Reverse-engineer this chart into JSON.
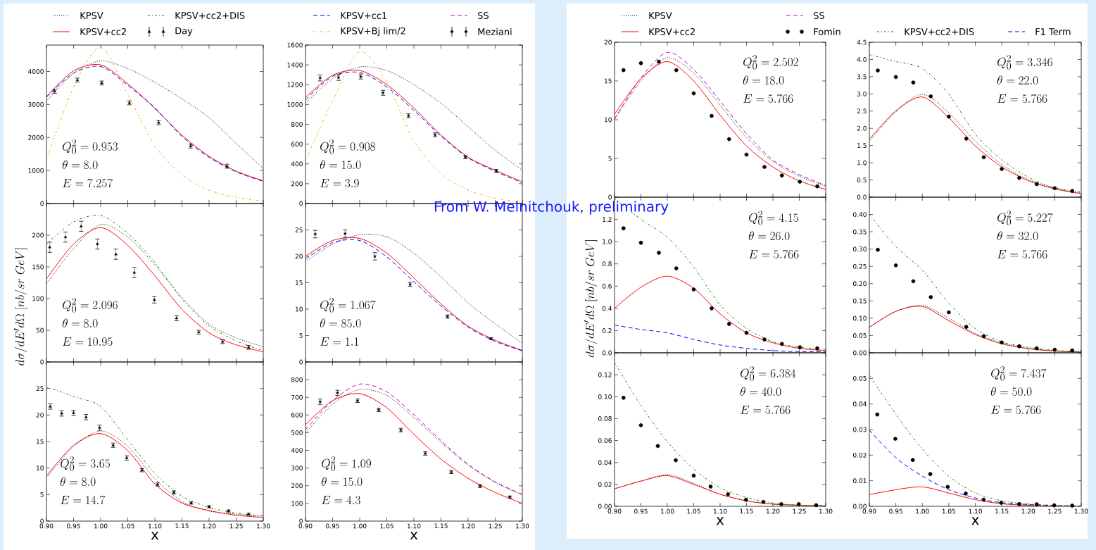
{
  "chart_data": [
    {
      "type": "line",
      "x": [
        0.9,
        0.95,
        1.0,
        1.05,
        1.1,
        1.15,
        1.2,
        1.25,
        1.3
      ],
      "xlim": [
        0.9,
        1.3
      ],
      "xticks": [
        0.9,
        0.95,
        1.0,
        1.05,
        1.1,
        1.15,
        1.2,
        1.25,
        1.3
      ],
      "ylim": [
        0,
        4800
      ],
      "yticks": [
        0,
        1000,
        2000,
        3000,
        4000
      ],
      "tick_labels": "y",
      "legend": "top",
      "annotations": [
        "Q_0^2=0.953",
        "\\theta=8.0",
        "E=7.257"
      ],
      "series": [
        {
          "name": "KPSV",
          "color": "#000000",
          "line_style": "dotted",
          "values": [
            3100,
            3950,
            4320,
            4090,
            3670,
            3170,
            2600,
            1820,
            1060
          ]
        },
        {
          "name": "KPSV+cc2",
          "color": "#ff0000",
          "line_style": "solid",
          "values": [
            3240,
            4020,
            4200,
            3630,
            2880,
            2070,
            1430,
            980,
            690
          ]
        },
        {
          "color": "#0000ff",
          "line_style": "dashed",
          "values": [
            3220,
            3950,
            4150,
            3580,
            2900,
            2030,
            1400,
            960,
            670
          ]
        },
        {
          "color": "#ffa500",
          "line_style": "dashdot",
          "values": [
            1330,
            3520,
            4730,
            3310,
            1750,
            870,
            400,
            190,
            60
          ]
        },
        {
          "type": "scatter",
          "marker": "triangle",
          "color": "#000000",
          "x": [
            0.915,
            0.957,
            1.002,
            1.053,
            1.107,
            1.166,
            1.233
          ],
          "values": [
            3400,
            3740,
            3650,
            3050,
            2450,
            1740,
            1130
          ],
          "errors": [
            60,
            60,
            60,
            60,
            60,
            60,
            60
          ]
        }
      ]
    },
    {
      "type": "line",
      "x": [
        0.9,
        0.95,
        1.0,
        1.05,
        1.1,
        1.15,
        1.2,
        1.25,
        1.3
      ],
      "xlim": [
        0.9,
        1.3
      ],
      "xticks": [
        0.9,
        0.95,
        1.0,
        1.05,
        1.1,
        1.15,
        1.2,
        1.25,
        1.3
      ],
      "ylim": [
        0,
        250
      ],
      "yticks": [
        0,
        50,
        100,
        150,
        200
      ],
      "tick_labels": "y",
      "legend": "top",
      "ylabel": "d\\sigma/dE'd\\Omega\\;[nb/sr\\;GeV]",
      "annotations": [
        "Q_0^2=2.096",
        "\\theta=8.0",
        "E=10.95"
      ],
      "series": [
        {
          "color": "#000000",
          "line_style": "dotted",
          "values": [
            123,
            179,
            217,
            197,
            153,
            101,
            60,
            38,
            24
          ]
        },
        {
          "color": "#ff0000",
          "line_style": "solid",
          "values": [
            131,
            186,
            212,
            184,
            136,
            83,
            46,
            27,
            16
          ]
        },
        {
          "name": "KPSV+cc2+DIS",
          "color": "#008000",
          "line_style": "dashdot",
          "values": [
            186,
            221,
            231,
            203,
            157,
            99,
            57,
            33,
            18
          ]
        },
        {
          "type": "scatter",
          "marker": "triangle",
          "color": "#000000",
          "x": [
            0.906,
            0.935,
            0.964,
            0.994,
            1.028,
            1.062,
            1.099,
            1.14,
            1.181,
            1.225,
            1.273
          ],
          "values": [
            181,
            197,
            214,
            186,
            170,
            141,
            98,
            69,
            47,
            32,
            23
          ],
          "errors": [
            8,
            8,
            8,
            8,
            8,
            8,
            5,
            4,
            3,
            3,
            3
          ]
        }
      ]
    },
    {
      "type": "line",
      "x": [
        0.9,
        0.95,
        1.0,
        1.05,
        1.1,
        1.15,
        1.2,
        1.25,
        1.3
      ],
      "xlim": [
        0.9,
        1.3
      ],
      "xticks": [
        {
          "value": 0.9,
          "label": "0.90"
        },
        {
          "value": 0.95,
          "label": "0.95"
        },
        {
          "value": 1.0,
          "label": "1.00"
        },
        {
          "value": 1.05,
          "label": "1.05"
        },
        {
          "value": 1.1,
          "label": "1.10"
        },
        {
          "value": 1.15,
          "label": "1.15"
        },
        {
          "value": 1.2,
          "label": "1.20"
        },
        {
          "value": 1.25,
          "label": "1.25"
        },
        {
          "value": 1.3,
          "label": "1.30"
        }
      ],
      "ylim": [
        0,
        30
      ],
      "yticks": [
        0,
        5,
        10,
        15,
        20,
        25
      ],
      "legend": "top",
      "xlabel": "x",
      "annotations": [
        "Q_0^2=3.65",
        "\\theta=8.0",
        "E=14.7"
      ],
      "series": [
        {
          "color": "#000000",
          "line_style": "dotted",
          "values": [
            8.2,
            14.0,
            17.0,
            14.1,
            8.0,
            3.7,
            1.9,
            1.3,
            0.9
          ]
        },
        {
          "color": "#ff0000",
          "line_style": "solid",
          "values": [
            8.5,
            14.3,
            16.5,
            13.3,
            7.0,
            3.4,
            2.0,
            1.1,
            0.7
          ]
        },
        {
          "color": "#008000",
          "line_style": "dashdot",
          "values": [
            25.3,
            23.5,
            21.6,
            15.3,
            9.0,
            4.7,
            2.6,
            1.5,
            1.0
          ]
        },
        {
          "name": "Day",
          "type": "scatter",
          "marker": "triangle",
          "color": "#000000",
          "x": [
            0.907,
            0.928,
            0.95,
            0.973,
            0.998,
            1.023,
            1.048,
            1.076,
            1.105,
            1.135,
            1.167,
            1.2,
            1.236,
            1.273
          ],
          "values": [
            21.6,
            20.3,
            20.4,
            19.6,
            17.6,
            14.3,
            11.9,
            9.6,
            6.9,
            5.4,
            3.4,
            2.7,
            1.9,
            1.3
          ],
          "errors": [
            0.5,
            0.5,
            0.5,
            0.5,
            0.5,
            0.4,
            0.4,
            0.3,
            0.3,
            0.3,
            0.2,
            0.2,
            0.2,
            0.2
          ]
        }
      ]
    },
    {
      "type": "line",
      "x": [
        0.9,
        0.95,
        1.0,
        1.05,
        1.1,
        1.15,
        1.2,
        1.25,
        1.3
      ],
      "xlim": [
        0.9,
        1.3
      ],
      "xticks": [
        0.9,
        0.95,
        1.0,
        1.05,
        1.1,
        1.15,
        1.2,
        1.25,
        1.3
      ],
      "ylim": [
        0,
        1600
      ],
      "yticks": [
        0,
        200,
        400,
        600,
        800,
        1000,
        1200,
        1400,
        1600
      ],
      "tick_labels": "y",
      "legend": "top",
      "annotations": [
        "Q_0^2=0.908",
        "\\theta=15.0",
        "E=3.9"
      ],
      "series": [
        {
          "color": "#000000",
          "line_style": "dotted",
          "values": [
            1012,
            1260,
            1379,
            1343,
            1201,
            1012,
            775,
            538,
            336
          ]
        },
        {
          "color": "#ff0000",
          "line_style": "solid",
          "values": [
            1071,
            1296,
            1343,
            1201,
            964,
            692,
            467,
            336,
            218
          ]
        },
        {
          "name": "KPSV+cc1",
          "color": "#0000ff",
          "line_style": "dashed",
          "values": [
            1047,
            1284,
            1324,
            1178,
            940,
            680,
            462,
            325,
            211
          ]
        },
        {
          "name": "KPSV+Bj lim/2",
          "color": "#ffa500",
          "line_style": "dashdot",
          "values": [
            431,
            1035,
            1533,
            1225,
            633,
            301,
            135,
            52,
            17
          ]
        },
        {
          "type": "scatter",
          "marker": "star",
          "color": "#000000",
          "x": [
            0.927,
            0.961,
            1.002,
            1.043,
            1.09,
            1.139,
            1.195,
            1.252
          ],
          "values": [
            1268,
            1273,
            1282,
            1118,
            886,
            694,
            467,
            329
          ],
          "errors": [
            30,
            30,
            25,
            25,
            20,
            20,
            15,
            15
          ]
        }
      ]
    },
    {
      "type": "line",
      "x": [
        0.9,
        0.95,
        1.0,
        1.05,
        1.1,
        1.15,
        1.2,
        1.25,
        1.3
      ],
      "xlim": [
        0.9,
        1.3
      ],
      "xticks": [
        0.9,
        0.95,
        1.0,
        1.05,
        1.1,
        1.15,
        1.2,
        1.25,
        1.3
      ],
      "ylim": [
        0,
        30
      ],
      "yticks": [
        0,
        5,
        10,
        15,
        20,
        25
      ],
      "tick_labels": "y",
      "annotations": [
        "Q_0^2=1.067",
        "\\theta=85.0",
        "E=1.1",
        "From W. Melnitchouk, preliminary"
      ],
      "series": [
        {
          "color": "#000000",
          "line_style": "dotted",
          "values": [
            19.0,
            22.3,
            24.1,
            23.7,
            20.6,
            16.1,
            11.2,
            7.2,
            3.6
          ]
        },
        {
          "color": "#ff0000",
          "line_style": "solid",
          "values": [
            20.0,
            23.0,
            23.4,
            20.6,
            15.9,
            11.0,
            6.8,
            4.1,
            2.2
          ]
        },
        {
          "color": "#0000ff",
          "line_style": "dashed",
          "values": [
            19.5,
            22.6,
            23.0,
            19.9,
            15.2,
            10.6,
            6.6,
            3.9,
            2.1
          ]
        },
        {
          "type": "scatter",
          "marker": "star",
          "color": "#000000",
          "x": [
            0.918,
            0.973,
            1.028,
            1.093,
            1.162,
            1.242
          ],
          "values": [
            24.2,
            24.3,
            20.0,
            14.7,
            8.6,
            4.4
          ],
          "errors": [
            0.7,
            0.7,
            0.7,
            0.4,
            0.3,
            0.2
          ]
        }
      ]
    },
    {
      "type": "line",
      "x": [
        0.9,
        0.95,
        1.0,
        1.05,
        1.1,
        1.15,
        1.2,
        1.25,
        1.3
      ],
      "xlim": [
        0.9,
        1.3
      ],
      "xticks": [
        {
          "value": 0.9,
          "label": "0.90"
        },
        {
          "value": 0.95,
          "label": "0.95"
        },
        {
          "value": 1.0,
          "label": "1.00"
        },
        {
          "value": 1.05,
          "label": "1.05"
        },
        {
          "value": 1.1,
          "label": "1.10"
        },
        {
          "value": 1.15,
          "label": "1.15"
        },
        {
          "value": 1.2,
          "label": "1.20"
        },
        {
          "value": 1.25,
          "label": "1.25"
        },
        {
          "value": 1.3,
          "label": "1.30"
        }
      ],
      "ylim": [
        0,
        900
      ],
      "yticks": [
        0,
        100,
        200,
        300,
        400,
        500,
        600,
        700,
        800
      ],
      "legend": "top",
      "xlabel": "x",
      "annotations": [
        "Q_0^2=1.09",
        "\\theta=15.0",
        "E=4.3"
      ],
      "series": [
        {
          "color": "#ff0000",
          "line_style": "solid",
          "values": [
            545,
            681,
            721,
            641,
            491,
            351,
            242,
            162,
            100
          ]
        },
        {
          "name": "SS",
          "color": "#bf00bf",
          "line_style": "dashed",
          "values": [
            517,
            681,
            775,
            731,
            601,
            455,
            321,
            222,
            152
          ]
        },
        {
          "color": "#000000",
          "line_style": "dotted",
          "values": [
            497,
            661,
            745,
            711,
            585,
            445,
            317,
            218,
            148
          ]
        },
        {
          "name": "Meziani",
          "type": "scatter",
          "marker": "star",
          "color": "#000000",
          "x": [
            0.927,
            0.959,
            0.996,
            1.035,
            1.076,
            1.121,
            1.169,
            1.222,
            1.277
          ],
          "values": [
            675,
            725,
            681,
            629,
            515,
            383,
            277,
            198,
            136
          ],
          "errors": [
            15,
            15,
            10,
            10,
            10,
            10,
            8,
            8,
            6
          ]
        }
      ]
    },
    {
      "type": "line",
      "x": [
        0.9,
        0.95,
        1.0,
        1.05,
        1.1,
        1.15,
        1.2,
        1.25,
        1.3
      ],
      "xlim": [
        0.9,
        1.3
      ],
      "xticks": [
        0.9,
        0.95,
        1.0,
        1.05,
        1.1,
        1.15,
        1.2,
        1.25,
        1.3
      ],
      "ylim": [
        0,
        20
      ],
      "yticks": [
        0,
        5,
        10,
        15,
        20
      ],
      "tick_labels": "y",
      "legend": "top",
      "annotations": [
        "Q_0^2=2.502",
        "\\theta=18.0",
        "E=5.766"
      ],
      "series": [
        {
          "name": "KPSV",
          "color": "#000000",
          "line_style": "dotted",
          "values": [
            10.0,
            15.0,
            18.0,
            16.0,
            11.9,
            7.7,
            4.6,
            2.7,
            1.4
          ]
        },
        {
          "name": "KPSV+cc2",
          "color": "#ff0000",
          "line_style": "solid",
          "values": [
            10.7,
            15.3,
            17.5,
            15.0,
            10.6,
            6.6,
            3.9,
            2.1,
            1.0
          ]
        },
        {
          "name": "SS",
          "color": "#bf00bf",
          "line_style": "dashed",
          "values": [
            10.1,
            15.4,
            18.7,
            16.5,
            12.4,
            8.2,
            4.8,
            2.9,
            1.5
          ]
        },
        {
          "name": "Fomin",
          "type": "scatter",
          "marker": "circle",
          "color": "#000000",
          "x": [
            0.917,
            0.95,
            0.984,
            1.017,
            1.05,
            1.084,
            1.117,
            1.15,
            1.184,
            1.217,
            1.251,
            1.284
          ],
          "values": [
            16.4,
            17.3,
            17.5,
            16.4,
            13.4,
            10.5,
            7.5,
            5.5,
            3.9,
            2.8,
            2.0,
            1.4
          ]
        }
      ]
    },
    {
      "type": "line",
      "x": [
        0.9,
        0.95,
        1.0,
        1.05,
        1.1,
        1.15,
        1.2,
        1.25,
        1.3
      ],
      "xlim": [
        0.9,
        1.3
      ],
      "xticks": [
        0.9,
        0.95,
        1.0,
        1.05,
        1.1,
        1.15,
        1.2,
        1.25,
        1.3
      ],
      "ylim": [
        0,
        1.4
      ],
      "yticks": [
        {
          "value": 0,
          "label": "0.0"
        },
        {
          "value": 0.2,
          "label": "0.2"
        },
        {
          "value": 0.4,
          "label": "0.4"
        },
        {
          "value": 0.6,
          "label": "0.6"
        },
        {
          "value": 0.8,
          "label": "0.8"
        },
        {
          "value": 1.0,
          "label": "1.0"
        },
        {
          "value": 1.2,
          "label": "1.2"
        }
      ],
      "tick_labels": "y",
      "legend": "top",
      "ylabel": "d\\sigma/dE'd\\Omega\\;[nb/sr\\;GeV]",
      "annotations": [
        "Q_0^2=4.15",
        "\\theta=26.0",
        "E=5.766"
      ],
      "series": [
        {
          "color": "#ff0000",
          "line_style": "solid",
          "values": [
            0.4,
            0.59,
            0.69,
            0.58,
            0.35,
            0.18,
            0.09,
            0.04,
            0.02
          ]
        },
        {
          "name": "KPSV+cc2+DIS",
          "color": "#008000",
          "line_style": "dashdot",
          "values": [
            1.39,
            1.2,
            1.04,
            0.77,
            0.43,
            0.22,
            0.1,
            0.05,
            0.03
          ]
        },
        {
          "name": "F1 Term",
          "color": "#0000ff",
          "line_style": "dashed",
          "values": [
            0.25,
            0.21,
            0.18,
            0.12,
            0.07,
            0.04,
            0.02,
            0.01,
            0.01
          ]
        },
        {
          "type": "scatter",
          "marker": "circle",
          "color": "#000000",
          "x": [
            0.917,
            0.95,
            0.984,
            1.017,
            1.05,
            1.084,
            1.117,
            1.15,
            1.184,
            1.217,
            1.251,
            1.284
          ],
          "values": [
            1.12,
            0.99,
            0.9,
            0.76,
            0.57,
            0.4,
            0.26,
            0.18,
            0.12,
            0.08,
            0.05,
            0.04
          ]
        }
      ]
    },
    {
      "type": "line",
      "x": [
        0.9,
        0.95,
        1.0,
        1.05,
        1.1,
        1.15,
        1.2,
        1.25,
        1.3
      ],
      "xlim": [
        0.9,
        1.3
      ],
      "xticks": [
        {
          "value": 0.9,
          "label": "0.90"
        },
        {
          "value": 0.95,
          "label": "0.95"
        },
        {
          "value": 1.0,
          "label": "1.00"
        },
        {
          "value": 1.05,
          "label": "1.05"
        },
        {
          "value": 1.1,
          "label": "1.10"
        },
        {
          "value": 1.15,
          "label": "1.15"
        },
        {
          "value": 1.2,
          "label": "1.20"
        },
        {
          "value": 1.25,
          "label": "1.25"
        },
        {
          "value": 1.3,
          "label": "1.30"
        }
      ],
      "ylim": [
        0,
        0.14
      ],
      "yticks": [
        {
          "value": 0,
          "label": "0.00"
        },
        {
          "value": 0.02,
          "label": "0.02"
        },
        {
          "value": 0.04,
          "label": "0.04"
        },
        {
          "value": 0.06,
          "label": "0.06"
        },
        {
          "value": 0.08,
          "label": "0.08"
        },
        {
          "value": 0.1,
          "label": "0.10"
        },
        {
          "value": 0.12,
          "label": "0.12"
        }
      ],
      "xlabel": "x",
      "annotations": [
        "Q_0^2=6.384",
        "\\theta=40.0",
        "E=5.766"
      ],
      "series": [
        {
          "color": "#000000",
          "line_style": "dotted",
          "values": [
            0.016,
            0.023,
            0.029,
            0.021,
            0.011,
            0.005,
            0.002,
            0.001,
            0.0
          ]
        },
        {
          "color": "#ff0000",
          "line_style": "solid",
          "values": [
            0.016,
            0.023,
            0.028,
            0.02,
            0.011,
            0.005,
            0.002,
            0.001,
            0.0
          ]
        },
        {
          "color": "#008000",
          "line_style": "dashdot",
          "values": [
            0.131,
            0.092,
            0.059,
            0.034,
            0.017,
            0.008,
            0.003,
            0.001,
            0.001
          ]
        },
        {
          "type": "scatter",
          "marker": "circle",
          "color": "#000000",
          "x": [
            0.917,
            0.95,
            0.982,
            1.016,
            1.05,
            1.082,
            1.115,
            1.149,
            1.182,
            1.216,
            1.249,
            1.282
          ],
          "values": [
            0.099,
            0.074,
            0.055,
            0.042,
            0.028,
            0.018,
            0.011,
            0.006,
            0.004,
            0.002,
            0.002,
            0.001
          ]
        }
      ]
    },
    {
      "type": "line",
      "x": [
        0.9,
        0.95,
        1.0,
        1.05,
        1.1,
        1.15,
        1.2,
        1.25,
        1.3
      ],
      "xlim": [
        0.9,
        1.3
      ],
      "xticks": [
        0.9,
        0.95,
        1.0,
        1.05,
        1.1,
        1.15,
        1.2,
        1.25,
        1.3
      ],
      "ylim": [
        0,
        4.5
      ],
      "yticks": [
        {
          "value": 0,
          "label": "0.0"
        },
        {
          "value": 0.5,
          "label": "0.5"
        },
        {
          "value": 1.0,
          "label": "1.0"
        },
        {
          "value": 1.5,
          "label": "1.5"
        },
        {
          "value": 2.0,
          "label": "2.0"
        },
        {
          "value": 2.5,
          "label": "2.5"
        },
        {
          "value": 3.0,
          "label": "3.0"
        },
        {
          "value": 3.5,
          "label": "3.5"
        },
        {
          "value": 4.0,
          "label": "4.0"
        },
        {
          "value": 4.5,
          "label": "4.5"
        }
      ],
      "tick_labels": "y",
      "annotations": [
        "Q_0^2=3.346",
        "\\theta=22.0",
        "E=5.766"
      ],
      "series": [
        {
          "color": "#ff0000",
          "line_style": "solid",
          "values": [
            1.68,
            2.51,
            2.91,
            2.31,
            1.49,
            0.88,
            0.48,
            0.24,
            0.1
          ]
        },
        {
          "color": "#000000",
          "line_style": "dotted",
          "values": [
            1.63,
            2.48,
            2.99,
            2.45,
            1.63,
            0.95,
            0.51,
            0.26,
            0.12
          ]
        },
        {
          "color": "#008000",
          "line_style": "dashdot",
          "values": [
            4.14,
            3.94,
            3.74,
            2.99,
            1.83,
            1.09,
            0.58,
            0.27,
            0.15
          ]
        },
        {
          "type": "scatter",
          "marker": "circle",
          "color": "#000000",
          "x": [
            0.916,
            0.95,
            0.983,
            1.016,
            1.05,
            1.083,
            1.116,
            1.15,
            1.183,
            1.216,
            1.25,
            1.283
          ],
          "values": [
            3.68,
            3.49,
            3.33,
            2.93,
            2.34,
            1.7,
            1.16,
            0.82,
            0.56,
            0.38,
            0.26,
            0.18
          ]
        }
      ]
    },
    {
      "type": "line",
      "x": [
        0.9,
        0.95,
        1.0,
        1.05,
        1.1,
        1.15,
        1.2,
        1.25,
        1.3
      ],
      "xlim": [
        0.9,
        1.3
      ],
      "xticks": [
        0.9,
        0.95,
        1.0,
        1.05,
        1.1,
        1.15,
        1.2,
        1.25,
        1.3
      ],
      "ylim": [
        0,
        0.45
      ],
      "yticks": [
        {
          "value": 0,
          "label": "0.00"
        },
        {
          "value": 0.05,
          "label": "0.05"
        },
        {
          "value": 0.1,
          "label": "0.10"
        },
        {
          "value": 0.15,
          "label": "0.15"
        },
        {
          "value": 0.2,
          "label": "0.20"
        },
        {
          "value": 0.25,
          "label": "0.25"
        },
        {
          "value": 0.3,
          "label": "0.30"
        },
        {
          "value": 0.35,
          "label": "0.35"
        },
        {
          "value": 0.4,
          "label": "0.40"
        }
      ],
      "tick_labels": "y",
      "annotations": [
        "Q_0^2=5.227",
        "\\theta=32.0",
        "E=5.766"
      ],
      "series": [
        {
          "color": "#ff0000",
          "line_style": "solid",
          "values": [
            0.074,
            0.12,
            0.134,
            0.093,
            0.053,
            0.026,
            0.012,
            0.005,
            0.002
          ]
        },
        {
          "color": "#000000",
          "line_style": "dotted",
          "values": [
            0.073,
            0.12,
            0.137,
            0.1,
            0.056,
            0.029,
            0.013,
            0.006,
            0.003
          ]
        },
        {
          "color": "#008000",
          "line_style": "dashdot",
          "values": [
            0.401,
            0.307,
            0.239,
            0.144,
            0.07,
            0.032,
            0.016,
            0.007,
            0.003
          ]
        },
        {
          "type": "scatter",
          "marker": "circle",
          "color": "#000000",
          "x": [
            0.916,
            0.95,
            0.983,
            1.016,
            1.05,
            1.083,
            1.116,
            1.15,
            1.183,
            1.216,
            1.25,
            1.283
          ],
          "values": [
            0.298,
            0.253,
            0.207,
            0.161,
            0.117,
            0.075,
            0.048,
            0.03,
            0.019,
            0.013,
            0.009,
            0.007
          ]
        }
      ]
    },
    {
      "type": "line",
      "x": [
        0.9,
        0.95,
        1.0,
        1.05,
        1.1,
        1.15,
        1.2,
        1.25,
        1.3
      ],
      "xlim": [
        0.9,
        1.3
      ],
      "xticks": [
        {
          "value": 0.9,
          "label": "0.90"
        },
        {
          "value": 0.95,
          "label": "0.95"
        },
        {
          "value": 1.0,
          "label": "1.00"
        },
        {
          "value": 1.05,
          "label": "1.05"
        },
        {
          "value": 1.1,
          "label": "1.10"
        },
        {
          "value": 1.15,
          "label": "1.15"
        },
        {
          "value": 1.2,
          "label": "1.20"
        },
        {
          "value": 1.25,
          "label": "1.25"
        },
        {
          "value": 1.3,
          "label": "1.30"
        }
      ],
      "ylim": [
        0,
        0.06
      ],
      "yticks": [
        {
          "value": 0,
          "label": "0.00"
        },
        {
          "value": 0.01,
          "label": "0.01"
        },
        {
          "value": 0.02,
          "label": "0.02"
        },
        {
          "value": 0.03,
          "label": "0.03"
        },
        {
          "value": 0.04,
          "label": "0.04"
        },
        {
          "value": 0.05,
          "label": "0.05"
        }
      ],
      "xlabel": "x",
      "annotations": [
        "Q_0^2=7.437",
        "\\theta=50.0",
        "E=5.766"
      ],
      "series": [
        {
          "color": "#ff0000",
          "line_style": "solid",
          "values": [
            0.0046,
            0.0065,
            0.0076,
            0.0052,
            0.0026,
            0.001,
            0.0004,
            0.0001,
            0.0
          ]
        },
        {
          "color": "#0000ff",
          "line_style": "dashed",
          "values": [
            0.0298,
            0.019,
            0.0118,
            0.0065,
            0.0033,
            0.0014,
            0.0007,
            0.0003,
            0.0001
          ]
        },
        {
          "color": "#008000",
          "line_style": "dashdot",
          "values": [
            0.0513,
            0.036,
            0.0223,
            0.0118,
            0.0052,
            0.0022,
            0.0009,
            0.0004,
            0.0001
          ]
        },
        {
          "type": "scatter",
          "marker": "circle",
          "color": "#000000",
          "x": [
            0.915,
            0.949,
            0.982,
            1.015,
            1.048,
            1.082,
            1.116,
            1.149,
            1.183,
            1.216,
            1.249,
            1.283
          ],
          "values": [
            0.0359,
            0.0264,
            0.0181,
            0.0126,
            0.0076,
            0.005,
            0.0026,
            0.0014,
            0.0009,
            0.0008,
            0.0004,
            0.0003
          ]
        }
      ]
    }
  ]
}
